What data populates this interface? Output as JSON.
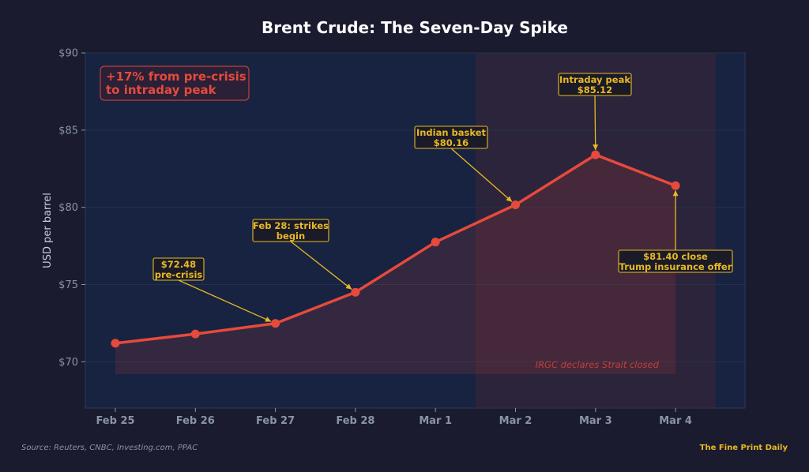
{
  "colors": {
    "background": "#1a1b2e",
    "plot_bg": "#172340",
    "line": "#e64a3c",
    "annotation": "#e8b923",
    "shade": "#3a2438"
  },
  "chart_data": {
    "type": "line",
    "title": "Brent Crude: The Seven-Day Spike",
    "xlabel": "",
    "ylabel": "USD per barrel",
    "categories": [
      "Feb 25",
      "Feb 26",
      "Feb 27",
      "Feb 28",
      "Mar 1",
      "Mar 2",
      "Mar 3",
      "Mar 4"
    ],
    "values": [
      71.2,
      71.8,
      72.48,
      74.5,
      77.75,
      80.16,
      83.4,
      81.4
    ],
    "ylim": [
      67,
      90
    ],
    "yticks": [
      70,
      75,
      80,
      85,
      90
    ],
    "ytick_labels": [
      "$70",
      "$75",
      "$80",
      "$85",
      "$90"
    ],
    "grid": true,
    "shaded_region": {
      "from": "Mar 2",
      "to": "Mar 4",
      "label": "IRGC declares Strait closed"
    },
    "callout": {
      "line1": "+17% from pre-crisis",
      "line2": "to intraday peak"
    },
    "annotations": [
      {
        "category": "Feb 27",
        "value": 72.48,
        "lines": [
          "$72.48",
          "pre-crisis"
        ]
      },
      {
        "category": "Feb 28",
        "value": 74.5,
        "lines": [
          "Feb 28: strikes",
          "begin"
        ]
      },
      {
        "category": "Mar 2",
        "value": 80.16,
        "lines": [
          "Indian basket",
          "$80.16"
        ]
      },
      {
        "category": "Mar 3",
        "value": 83.4,
        "lines": [
          "Intraday peak",
          "$85.12"
        ]
      },
      {
        "category": "Mar 4",
        "value": 81.4,
        "lines": [
          "$81.40 close",
          "Trump insurance offer"
        ]
      }
    ]
  },
  "footer": {
    "source": "Source: Reuters, CNBC, Investing.com, PPAC",
    "brand": "The Fine Print Daily"
  }
}
